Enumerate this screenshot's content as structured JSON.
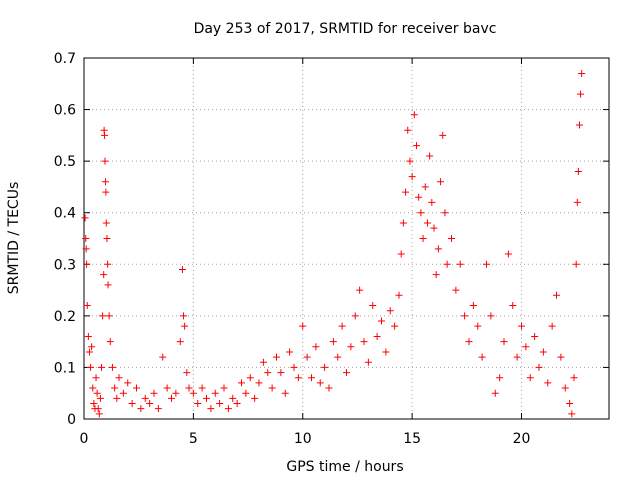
{
  "chart_data": {
    "type": "scatter",
    "title": "Day 253 of 2017, SRMTID for receiver bavc",
    "xlabel": "GPS time / hours",
    "ylabel": "SRMTID / TECUs",
    "xlim": [
      0,
      24
    ],
    "ylim": [
      0,
      0.7
    ],
    "xticks": [
      "0",
      "5",
      "10",
      "15",
      "20"
    ],
    "xtick_values": [
      0,
      5,
      10,
      15,
      20
    ],
    "yticks": [
      "0",
      "0.1",
      "0.2",
      "0.3",
      "0.4",
      "0.5",
      "0.6",
      "0.7"
    ],
    "ytick_values": [
      0,
      0.1,
      0.2,
      0.3,
      0.4,
      0.5,
      0.6,
      0.7
    ],
    "grid": true,
    "marker": "+",
    "marker_color": "#ff0000",
    "series": [
      {
        "name": "SRMTID",
        "points": [
          [
            0.05,
            0.39
          ],
          [
            0.08,
            0.35
          ],
          [
            0.1,
            0.33
          ],
          [
            0.12,
            0.3
          ],
          [
            0.15,
            0.22
          ],
          [
            0.2,
            0.16
          ],
          [
            0.25,
            0.13
          ],
          [
            0.3,
            0.1
          ],
          [
            0.35,
            0.14
          ],
          [
            0.4,
            0.06
          ],
          [
            0.45,
            0.03
          ],
          [
            0.5,
            0.02
          ],
          [
            0.55,
            0.08
          ],
          [
            0.6,
            0.05
          ],
          [
            0.65,
            0.02
          ],
          [
            0.7,
            0.01
          ],
          [
            0.75,
            0.04
          ],
          [
            0.8,
            0.1
          ],
          [
            0.85,
            0.2
          ],
          [
            0.9,
            0.28
          ],
          [
            0.92,
            0.56
          ],
          [
            0.94,
            0.55
          ],
          [
            0.96,
            0.5
          ],
          [
            0.98,
            0.46
          ],
          [
            1.0,
            0.44
          ],
          [
            1.02,
            0.38
          ],
          [
            1.05,
            0.35
          ],
          [
            1.08,
            0.3
          ],
          [
            1.1,
            0.26
          ],
          [
            1.15,
            0.2
          ],
          [
            1.2,
            0.15
          ],
          [
            1.3,
            0.1
          ],
          [
            1.4,
            0.06
          ],
          [
            1.5,
            0.04
          ],
          [
            1.6,
            0.08
          ],
          [
            1.8,
            0.05
          ],
          [
            2.0,
            0.07
          ],
          [
            2.2,
            0.03
          ],
          [
            2.4,
            0.06
          ],
          [
            2.6,
            0.02
          ],
          [
            2.8,
            0.04
          ],
          [
            3.0,
            0.03
          ],
          [
            3.2,
            0.05
          ],
          [
            3.4,
            0.02
          ],
          [
            3.6,
            0.12
          ],
          [
            3.8,
            0.06
          ],
          [
            4.0,
            0.04
          ],
          [
            4.2,
            0.05
          ],
          [
            4.4,
            0.15
          ],
          [
            4.5,
            0.29
          ],
          [
            4.55,
            0.2
          ],
          [
            4.6,
            0.18
          ],
          [
            4.7,
            0.09
          ],
          [
            4.8,
            0.06
          ],
          [
            5.0,
            0.05
          ],
          [
            5.2,
            0.03
          ],
          [
            5.4,
            0.06
          ],
          [
            5.6,
            0.04
          ],
          [
            5.8,
            0.02
          ],
          [
            6.0,
            0.05
          ],
          [
            6.2,
            0.03
          ],
          [
            6.4,
            0.06
          ],
          [
            6.6,
            0.02
          ],
          [
            6.8,
            0.04
          ],
          [
            7.0,
            0.03
          ],
          [
            7.2,
            0.07
          ],
          [
            7.4,
            0.05
          ],
          [
            7.6,
            0.08
          ],
          [
            7.8,
            0.04
          ],
          [
            8.0,
            0.07
          ],
          [
            8.2,
            0.11
          ],
          [
            8.4,
            0.09
          ],
          [
            8.6,
            0.06
          ],
          [
            8.8,
            0.12
          ],
          [
            9.0,
            0.09
          ],
          [
            9.2,
            0.05
          ],
          [
            9.4,
            0.13
          ],
          [
            9.6,
            0.1
          ],
          [
            9.8,
            0.08
          ],
          [
            10.0,
            0.18
          ],
          [
            10.2,
            0.12
          ],
          [
            10.4,
            0.08
          ],
          [
            10.6,
            0.14
          ],
          [
            10.8,
            0.07
          ],
          [
            11.0,
            0.1
          ],
          [
            11.2,
            0.06
          ],
          [
            11.4,
            0.15
          ],
          [
            11.6,
            0.12
          ],
          [
            11.8,
            0.18
          ],
          [
            12.0,
            0.09
          ],
          [
            12.2,
            0.14
          ],
          [
            12.4,
            0.2
          ],
          [
            12.6,
            0.25
          ],
          [
            12.8,
            0.15
          ],
          [
            13.0,
            0.11
          ],
          [
            13.2,
            0.22
          ],
          [
            13.4,
            0.16
          ],
          [
            13.6,
            0.19
          ],
          [
            13.8,
            0.13
          ],
          [
            14.0,
            0.21
          ],
          [
            14.2,
            0.18
          ],
          [
            14.4,
            0.24
          ],
          [
            14.5,
            0.32
          ],
          [
            14.6,
            0.38
          ],
          [
            14.7,
            0.44
          ],
          [
            14.8,
            0.56
          ],
          [
            14.9,
            0.5
          ],
          [
            15.0,
            0.47
          ],
          [
            15.1,
            0.59
          ],
          [
            15.2,
            0.53
          ],
          [
            15.3,
            0.43
          ],
          [
            15.4,
            0.4
          ],
          [
            15.5,
            0.35
          ],
          [
            15.6,
            0.45
          ],
          [
            15.7,
            0.38
          ],
          [
            15.8,
            0.51
          ],
          [
            15.9,
            0.42
          ],
          [
            16.0,
            0.37
          ],
          [
            16.1,
            0.28
          ],
          [
            16.2,
            0.33
          ],
          [
            16.3,
            0.46
          ],
          [
            16.4,
            0.55
          ],
          [
            16.5,
            0.4
          ],
          [
            16.6,
            0.3
          ],
          [
            16.8,
            0.35
          ],
          [
            17.0,
            0.25
          ],
          [
            17.2,
            0.3
          ],
          [
            17.4,
            0.2
          ],
          [
            17.6,
            0.15
          ],
          [
            17.8,
            0.22
          ],
          [
            18.0,
            0.18
          ],
          [
            18.2,
            0.12
          ],
          [
            18.4,
            0.3
          ],
          [
            18.6,
            0.2
          ],
          [
            18.8,
            0.05
          ],
          [
            19.0,
            0.08
          ],
          [
            19.2,
            0.15
          ],
          [
            19.4,
            0.32
          ],
          [
            19.6,
            0.22
          ],
          [
            19.8,
            0.12
          ],
          [
            20.0,
            0.18
          ],
          [
            20.2,
            0.14
          ],
          [
            20.4,
            0.08
          ],
          [
            20.6,
            0.16
          ],
          [
            20.8,
            0.1
          ],
          [
            21.0,
            0.13
          ],
          [
            21.2,
            0.07
          ],
          [
            21.4,
            0.18
          ],
          [
            21.6,
            0.24
          ],
          [
            21.8,
            0.12
          ],
          [
            22.0,
            0.06
          ],
          [
            22.2,
            0.03
          ],
          [
            22.3,
            0.01
          ],
          [
            22.4,
            0.08
          ],
          [
            22.5,
            0.3
          ],
          [
            22.55,
            0.42
          ],
          [
            22.6,
            0.48
          ],
          [
            22.65,
            0.57
          ],
          [
            22.7,
            0.63
          ],
          [
            22.75,
            0.67
          ]
        ]
      }
    ]
  }
}
